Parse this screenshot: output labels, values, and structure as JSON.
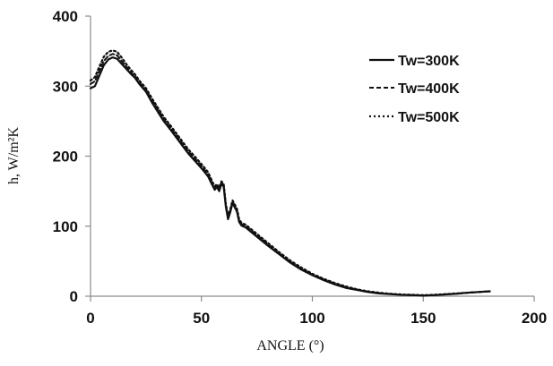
{
  "chart_data": {
    "type": "line",
    "title": "",
    "xlabel": "ANGLE (°)",
    "ylabel": "h, W/m²K",
    "xlim": [
      0,
      200
    ],
    "ylim": [
      0,
      400
    ],
    "x_ticks": [
      "0",
      "50",
      "100",
      "150",
      "200"
    ],
    "y_ticks": [
      "0",
      "100",
      "200",
      "300",
      "400"
    ],
    "grid": false,
    "legend_position": "top-right",
    "series": [
      {
        "name": "Tw=300K",
        "style": "solid",
        "points": [
          [
            0,
            297
          ],
          [
            2,
            300
          ],
          [
            4,
            315
          ],
          [
            6,
            330
          ],
          [
            8,
            338
          ],
          [
            10,
            341
          ],
          [
            12,
            339
          ],
          [
            14,
            332
          ],
          [
            16,
            325
          ],
          [
            18,
            318
          ],
          [
            20,
            312
          ],
          [
            22,
            303
          ],
          [
            25,
            292
          ],
          [
            28,
            275
          ],
          [
            30,
            265
          ],
          [
            33,
            250
          ],
          [
            36,
            238
          ],
          [
            40,
            221
          ],
          [
            44,
            204
          ],
          [
            48,
            190
          ],
          [
            51,
            179
          ],
          [
            53,
            171
          ],
          [
            55,
            158
          ],
          [
            56,
            152
          ],
          [
            57,
            156
          ],
          [
            58,
            150
          ],
          [
            59,
            160
          ],
          [
            60,
            157
          ],
          [
            61,
            128
          ],
          [
            62,
            110
          ],
          [
            63,
            120
          ],
          [
            64,
            133
          ],
          [
            65,
            127
          ],
          [
            66,
            121
          ],
          [
            67,
            106
          ],
          [
            68,
            101
          ],
          [
            70,
            98
          ],
          [
            75,
            85
          ],
          [
            80,
            72
          ],
          [
            85,
            60
          ],
          [
            90,
            48
          ],
          [
            95,
            38
          ],
          [
            100,
            30
          ],
          [
            105,
            23
          ],
          [
            110,
            17
          ],
          [
            115,
            12
          ],
          [
            120,
            9
          ],
          [
            125,
            6
          ],
          [
            130,
            4
          ],
          [
            135,
            3
          ],
          [
            140,
            2
          ],
          [
            145,
            1.5
          ],
          [
            150,
            1
          ],
          [
            155,
            1.5
          ],
          [
            160,
            2.5
          ],
          [
            165,
            3.5
          ],
          [
            170,
            5
          ],
          [
            175,
            6
          ],
          [
            180,
            7
          ]
        ]
      },
      {
        "name": "Tw=400K",
        "style": "dashed",
        "points": [
          [
            0,
            303
          ],
          [
            2,
            307
          ],
          [
            4,
            322
          ],
          [
            6,
            336
          ],
          [
            8,
            343
          ],
          [
            10,
            346
          ],
          [
            12,
            344
          ],
          [
            14,
            336
          ],
          [
            16,
            328
          ],
          [
            18,
            320
          ],
          [
            20,
            314
          ],
          [
            22,
            305
          ],
          [
            25,
            294
          ],
          [
            28,
            278
          ],
          [
            30,
            268
          ],
          [
            33,
            253
          ],
          [
            36,
            241
          ],
          [
            40,
            224
          ],
          [
            44,
            207
          ],
          [
            48,
            193
          ],
          [
            51,
            182
          ],
          [
            53,
            174
          ],
          [
            55,
            160
          ],
          [
            56,
            154
          ],
          [
            57,
            158
          ],
          [
            58,
            152
          ],
          [
            59,
            162
          ],
          [
            60,
            159
          ],
          [
            61,
            130
          ],
          [
            62,
            112
          ],
          [
            63,
            122
          ],
          [
            64,
            135
          ],
          [
            65,
            129
          ],
          [
            66,
            123
          ],
          [
            67,
            108
          ],
          [
            68,
            103
          ],
          [
            70,
            100
          ],
          [
            75,
            87
          ],
          [
            80,
            74
          ],
          [
            85,
            61
          ],
          [
            90,
            49
          ],
          [
            95,
            39
          ],
          [
            100,
            31
          ],
          [
            105,
            24
          ],
          [
            110,
            18
          ],
          [
            115,
            13
          ],
          [
            120,
            9.5
          ],
          [
            125,
            6.5
          ],
          [
            130,
            4.5
          ],
          [
            135,
            3
          ],
          [
            140,
            2
          ],
          [
            145,
            1.5
          ],
          [
            150,
            1
          ],
          [
            155,
            1.5
          ],
          [
            160,
            2.5
          ],
          [
            165,
            3.5
          ],
          [
            170,
            5
          ],
          [
            175,
            6
          ],
          [
            180,
            7
          ]
        ]
      },
      {
        "name": "Tw=500K",
        "style": "dotted",
        "points": [
          [
            0,
            308
          ],
          [
            2,
            313
          ],
          [
            4,
            328
          ],
          [
            6,
            342
          ],
          [
            8,
            349
          ],
          [
            10,
            351
          ],
          [
            12,
            349
          ],
          [
            14,
            341
          ],
          [
            16,
            332
          ],
          [
            18,
            324
          ],
          [
            20,
            317
          ],
          [
            22,
            308
          ],
          [
            25,
            297
          ],
          [
            28,
            281
          ],
          [
            30,
            271
          ],
          [
            33,
            256
          ],
          [
            36,
            244
          ],
          [
            40,
            227
          ],
          [
            44,
            210
          ],
          [
            48,
            196
          ],
          [
            51,
            185
          ],
          [
            53,
            177
          ],
          [
            55,
            163
          ],
          [
            56,
            157
          ],
          [
            57,
            160
          ],
          [
            58,
            155
          ],
          [
            59,
            164
          ],
          [
            60,
            161
          ],
          [
            61,
            132
          ],
          [
            62,
            114
          ],
          [
            63,
            124
          ],
          [
            64,
            137
          ],
          [
            65,
            131
          ],
          [
            66,
            125
          ],
          [
            67,
            110
          ],
          [
            68,
            105
          ],
          [
            70,
            102
          ],
          [
            75,
            89
          ],
          [
            80,
            76
          ],
          [
            85,
            63
          ],
          [
            90,
            51
          ],
          [
            95,
            41
          ],
          [
            100,
            32
          ],
          [
            105,
            25
          ],
          [
            110,
            19
          ],
          [
            115,
            14
          ],
          [
            120,
            10
          ],
          [
            125,
            7
          ],
          [
            130,
            5
          ],
          [
            135,
            3.5
          ],
          [
            140,
            2.5
          ],
          [
            145,
            2
          ],
          [
            150,
            1.5
          ],
          [
            155,
            2
          ],
          [
            160,
            3
          ],
          [
            165,
            4
          ],
          [
            170,
            5
          ],
          [
            175,
            6
          ],
          [
            180,
            7
          ]
        ]
      }
    ]
  }
}
